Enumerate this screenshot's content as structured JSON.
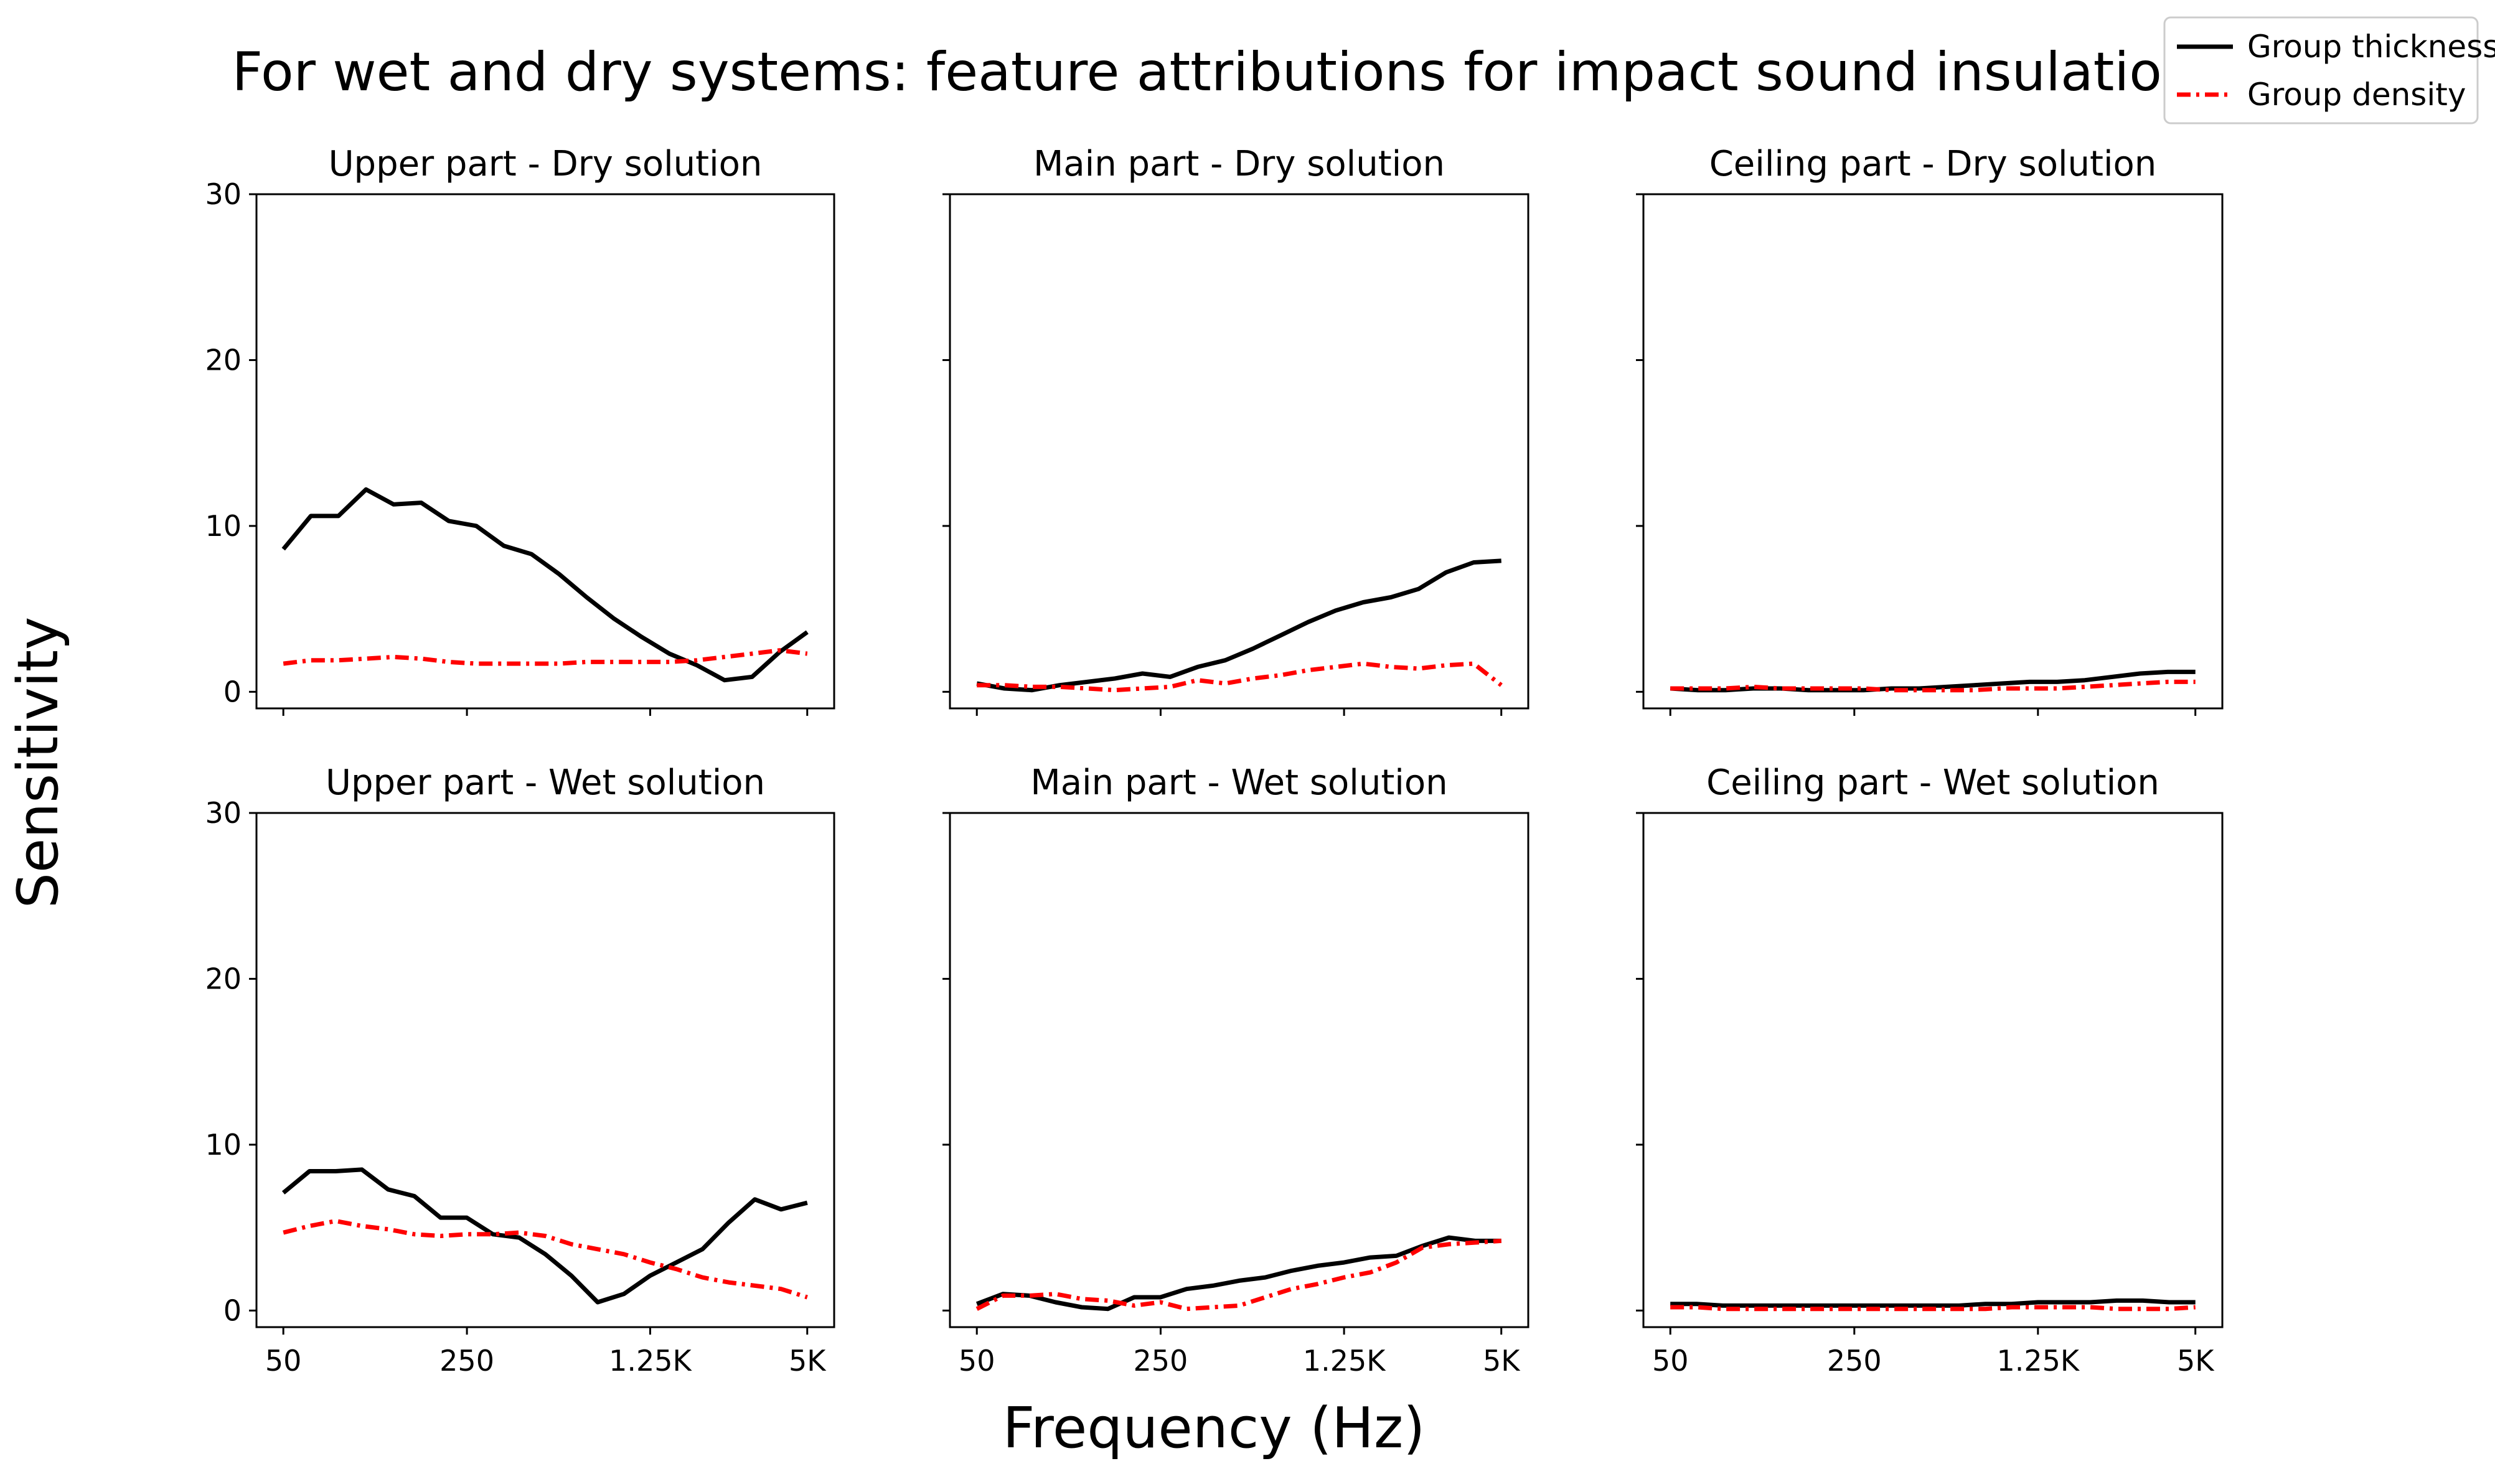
{
  "figure": {
    "title": "For wet and dry systems: feature attributions for impact sound insulation",
    "xlabel": "Frequency (Hz)",
    "ylabel": "Sensitivity"
  },
  "legend": {
    "position": "top-right",
    "items": [
      {
        "label": "Group thickness",
        "color": "#000000",
        "style": "solid"
      },
      {
        "label": "Group density",
        "color": "#ff0000",
        "style": "dashdot"
      }
    ]
  },
  "chart_data": [
    {
      "type": "line",
      "title": "Upper part - Dry solution",
      "x_ticks": [
        "50",
        "250",
        "1.25K",
        "5K"
      ],
      "ylim": [
        -1,
        30
      ],
      "y_ticks": [
        "0",
        "10",
        "20",
        "30"
      ],
      "series": [
        {
          "name": "Group thickness",
          "color": "#000000",
          "values": [
            8.6,
            10.6,
            10.6,
            12.2,
            11.3,
            11.4,
            10.3,
            10.0,
            8.8,
            8.3,
            7.1,
            5.7,
            4.4,
            3.3,
            2.3,
            1.6,
            0.7,
            0.9,
            2.4,
            3.6
          ]
        },
        {
          "name": "Group density",
          "color": "#ff0000",
          "values": [
            1.7,
            1.9,
            1.9,
            2.0,
            2.1,
            2.0,
            1.8,
            1.7,
            1.7,
            1.7,
            1.7,
            1.8,
            1.8,
            1.8,
            1.8,
            1.9,
            2.1,
            2.3,
            2.5,
            2.3
          ]
        }
      ]
    },
    {
      "type": "line",
      "title": "Main part - Dry solution",
      "x_ticks": [
        "50",
        "250",
        "1.25K",
        "5K"
      ],
      "ylim": [
        -1,
        30
      ],
      "y_ticks": [
        "0",
        "10",
        "20",
        "30"
      ],
      "series": [
        {
          "name": "Group thickness",
          "color": "#000000",
          "values": [
            0.5,
            0.2,
            0.1,
            0.4,
            0.6,
            0.8,
            1.1,
            0.9,
            1.5,
            1.9,
            2.6,
            3.4,
            4.2,
            4.9,
            5.4,
            5.7,
            6.2,
            7.2,
            7.8,
            7.9
          ]
        },
        {
          "name": "Group density",
          "color": "#ff0000",
          "values": [
            0.4,
            0.4,
            0.3,
            0.3,
            0.2,
            0.1,
            0.2,
            0.3,
            0.7,
            0.5,
            0.8,
            1.0,
            1.3,
            1.5,
            1.7,
            1.5,
            1.4,
            1.6,
            1.7,
            0.4
          ]
        }
      ]
    },
    {
      "type": "line",
      "title": "Ceiling part - Dry solution",
      "x_ticks": [
        "50",
        "250",
        "1.25K",
        "5K"
      ],
      "ylim": [
        -1,
        30
      ],
      "y_ticks": [
        "0",
        "10",
        "20",
        "30"
      ],
      "series": [
        {
          "name": "Group thickness",
          "color": "#000000",
          "values": [
            0.2,
            0.1,
            0.1,
            0.2,
            0.2,
            0.1,
            0.1,
            0.1,
            0.2,
            0.2,
            0.3,
            0.4,
            0.5,
            0.6,
            0.6,
            0.7,
            0.9,
            1.1,
            1.2,
            1.2
          ]
        },
        {
          "name": "Group density",
          "color": "#ff0000",
          "values": [
            0.2,
            0.2,
            0.2,
            0.3,
            0.2,
            0.2,
            0.2,
            0.2,
            0.1,
            0.1,
            0.1,
            0.1,
            0.2,
            0.2,
            0.2,
            0.3,
            0.4,
            0.5,
            0.6,
            0.6
          ]
        }
      ]
    },
    {
      "type": "line",
      "title": "Upper part - Wet solution",
      "x_ticks": [
        "50",
        "250",
        "1.25K",
        "5K"
      ],
      "ylim": [
        -1,
        30
      ],
      "y_ticks": [
        "0",
        "10",
        "20",
        "30"
      ],
      "series": [
        {
          "name": "Group thickness",
          "color": "#000000",
          "values": [
            7.1,
            8.4,
            8.4,
            8.5,
            7.3,
            6.9,
            5.6,
            5.6,
            4.6,
            4.4,
            3.4,
            2.1,
            0.5,
            1.0,
            2.1,
            2.9,
            3.7,
            5.3,
            6.7,
            6.1,
            6.5
          ]
        },
        {
          "name": "Group density",
          "color": "#ff0000",
          "values": [
            4.7,
            5.1,
            5.4,
            5.1,
            4.9,
            4.6,
            4.5,
            4.6,
            4.6,
            4.7,
            4.5,
            4.0,
            3.7,
            3.4,
            2.9,
            2.5,
            2.0,
            1.7,
            1.5,
            1.3,
            0.8
          ]
        }
      ]
    },
    {
      "type": "line",
      "title": "Main part - Wet solution",
      "x_ticks": [
        "50",
        "250",
        "1.25K",
        "5K"
      ],
      "ylim": [
        -1,
        30
      ],
      "y_ticks": [
        "0",
        "10",
        "20",
        "30"
      ],
      "series": [
        {
          "name": "Group thickness",
          "color": "#000000",
          "values": [
            0.4,
            1.0,
            0.9,
            0.5,
            0.2,
            0.1,
            0.8,
            0.8,
            1.3,
            1.5,
            1.8,
            2.0,
            2.4,
            2.7,
            2.9,
            3.2,
            3.3,
            3.9,
            4.4,
            4.2,
            4.2
          ]
        },
        {
          "name": "Group density",
          "color": "#ff0000",
          "values": [
            0.1,
            0.9,
            0.9,
            1.0,
            0.7,
            0.6,
            0.3,
            0.5,
            0.1,
            0.2,
            0.3,
            0.8,
            1.3,
            1.6,
            2.0,
            2.3,
            2.9,
            3.8,
            4.0,
            4.1,
            4.2
          ]
        }
      ]
    },
    {
      "type": "line",
      "title": "Ceiling part - Wet solution",
      "x_ticks": [
        "50",
        "250",
        "1.25K",
        "5K"
      ],
      "ylim": [
        -1,
        30
      ],
      "y_ticks": [
        "0",
        "10",
        "20",
        "30"
      ],
      "series": [
        {
          "name": "Group thickness",
          "color": "#000000",
          "values": [
            0.4,
            0.4,
            0.3,
            0.3,
            0.3,
            0.3,
            0.3,
            0.3,
            0.3,
            0.3,
            0.3,
            0.3,
            0.4,
            0.4,
            0.5,
            0.5,
            0.5,
            0.6,
            0.6,
            0.5,
            0.5
          ]
        },
        {
          "name": "Group density",
          "color": "#ff0000",
          "values": [
            0.2,
            0.2,
            0.1,
            0.1,
            0.1,
            0.1,
            0.1,
            0.1,
            0.1,
            0.1,
            0.1,
            0.1,
            0.1,
            0.2,
            0.2,
            0.2,
            0.2,
            0.1,
            0.1,
            0.1,
            0.2
          ]
        }
      ]
    }
  ]
}
